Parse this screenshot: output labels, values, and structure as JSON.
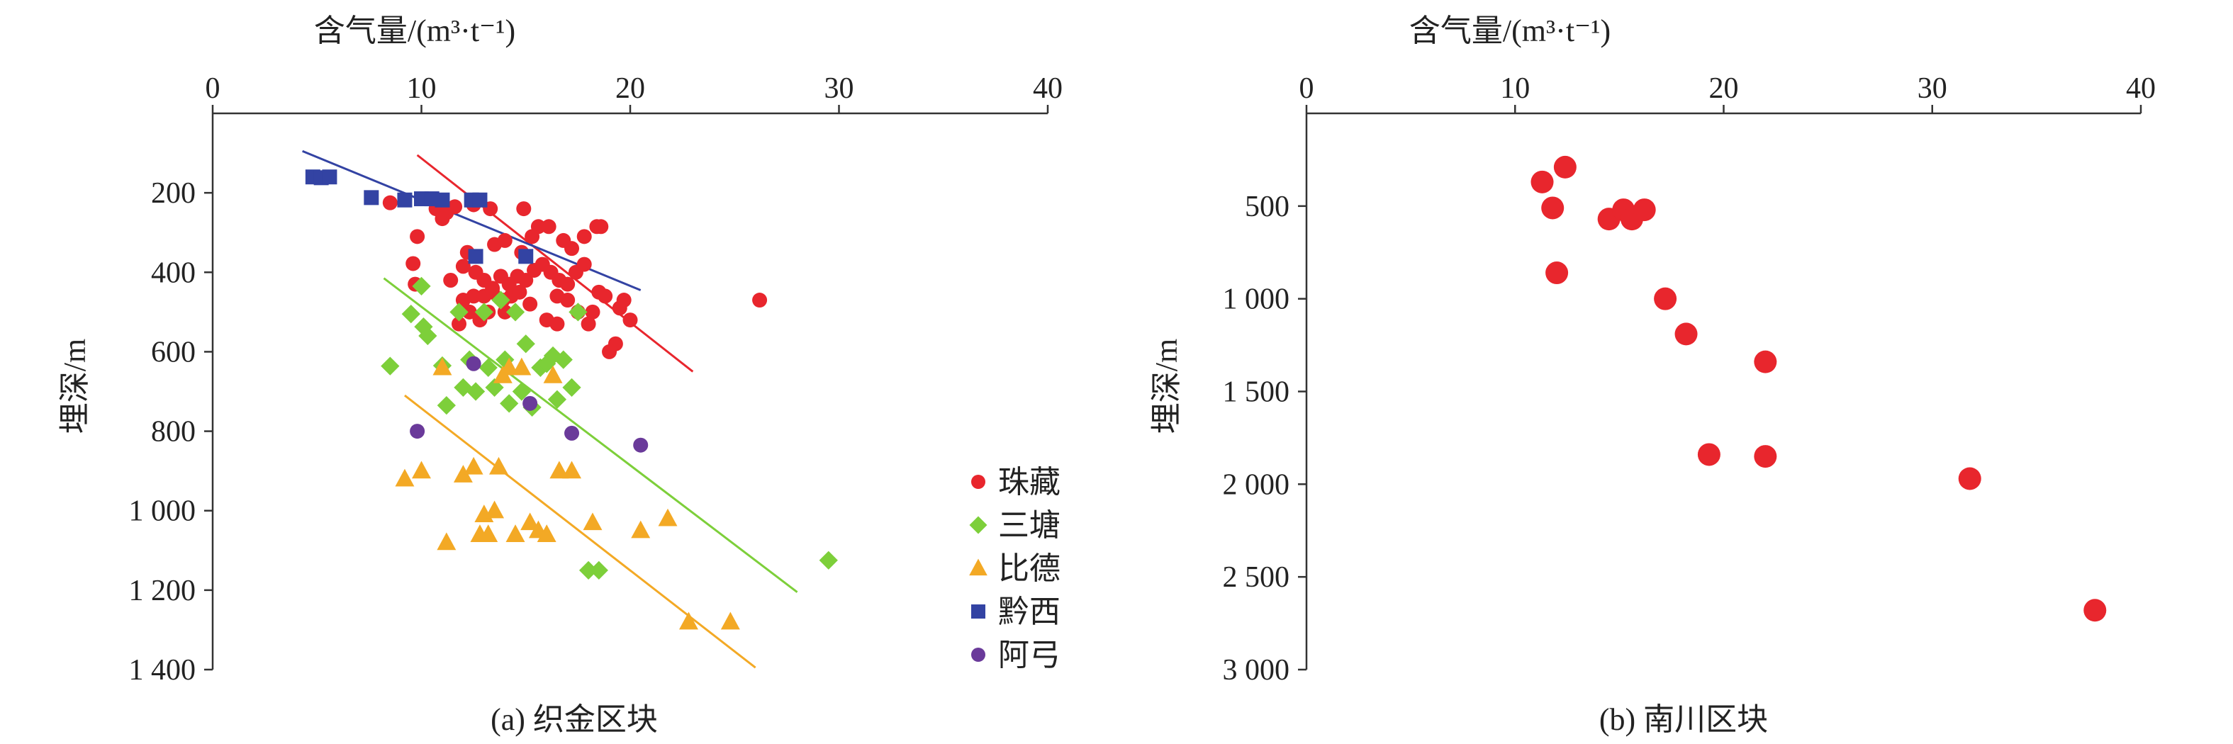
{
  "chart_data": [
    {
      "type": "scatter",
      "panel_label": "(a) 织金区块",
      "xlabel": "含气量/(m³·t⁻¹)",
      "ylabel": "埋深/m",
      "xlim": [
        0,
        40
      ],
      "ylim": [
        0,
        1400
      ],
      "x_ticks": [
        "0",
        "10",
        "20",
        "30",
        "40"
      ],
      "y_ticks": [
        "200",
        "400",
        "600",
        "800",
        "1 000",
        "1 200",
        "1 400"
      ],
      "y_tick_values": [
        200,
        400,
        600,
        800,
        1000,
        1200,
        1400
      ],
      "x_axis_position": "top",
      "y_axis_inverted": true,
      "grid": false,
      "legend_position": "right",
      "series": [
        {
          "name": "珠藏",
          "color": "#e8262d",
          "marker": "circle",
          "points": [
            [
              8.5,
              225
            ],
            [
              10.7,
              240
            ],
            [
              11.2,
              250
            ],
            [
              11.6,
              235
            ],
            [
              12.5,
              230
            ],
            [
              13.3,
              240
            ],
            [
              14.9,
              240
            ],
            [
              15.6,
              285
            ],
            [
              16.1,
              285
            ],
            [
              18.4,
              285
            ],
            [
              18.6,
              285
            ],
            [
              11.0,
              265
            ],
            [
              9.8,
              310
            ],
            [
              9.6,
              378
            ],
            [
              9.7,
              430
            ],
            [
              12.2,
              350
            ],
            [
              13.5,
              330
            ],
            [
              14.0,
              320
            ],
            [
              14.8,
              350
            ],
            [
              15.3,
              310
            ],
            [
              16.8,
              320
            ],
            [
              17.2,
              340
            ],
            [
              17.8,
              310
            ],
            [
              11.4,
              420
            ],
            [
              12.0,
              385
            ],
            [
              12.6,
              400
            ],
            [
              13.0,
              420
            ],
            [
              13.4,
              440
            ],
            [
              13.8,
              410
            ],
            [
              14.2,
              430
            ],
            [
              14.6,
              410
            ],
            [
              15.0,
              420
            ],
            [
              15.4,
              395
            ],
            [
              15.8,
              380
            ],
            [
              16.2,
              400
            ],
            [
              16.6,
              420
            ],
            [
              17.0,
              430
            ],
            [
              17.4,
              400
            ],
            [
              17.8,
              380
            ],
            [
              12.0,
              470
            ],
            [
              12.5,
              460
            ],
            [
              13.0,
              460
            ],
            [
              13.4,
              450
            ],
            [
              13.9,
              470
            ],
            [
              14.3,
              460
            ],
            [
              14.7,
              450
            ],
            [
              15.2,
              480
            ],
            [
              11.8,
              530
            ],
            [
              12.3,
              500
            ],
            [
              12.8,
              520
            ],
            [
              13.2,
              500
            ],
            [
              14.0,
              500
            ],
            [
              16.0,
              520
            ],
            [
              16.5,
              530
            ],
            [
              17.5,
              500
            ],
            [
              18.2,
              500
            ],
            [
              18.8,
              460
            ],
            [
              19.5,
              490
            ],
            [
              19.7,
              470
            ],
            [
              20.0,
              520
            ],
            [
              19.3,
              580
            ],
            [
              19.0,
              600
            ],
            [
              18.5,
              450
            ],
            [
              17.0,
              470
            ],
            [
              16.5,
              460
            ],
            [
              18.0,
              530
            ],
            [
              26.2,
              470
            ]
          ]
        },
        {
          "name": "三塘",
          "color": "#7dcf3a",
          "marker": "diamond",
          "points": [
            [
              8.5,
              636
            ],
            [
              9.5,
              505
            ],
            [
              10.0,
              435
            ],
            [
              10.1,
              537
            ],
            [
              10.3,
              560
            ],
            [
              11.0,
              635
            ],
            [
              11.2,
              735
            ],
            [
              11.8,
              500
            ],
            [
              12.0,
              690
            ],
            [
              12.3,
              620
            ],
            [
              12.6,
              700
            ],
            [
              13.0,
              500
            ],
            [
              13.2,
              640
            ],
            [
              13.5,
              690
            ],
            [
              13.8,
              470
            ],
            [
              14.0,
              620
            ],
            [
              14.2,
              730
            ],
            [
              14.5,
              500
            ],
            [
              14.8,
              700
            ],
            [
              15.0,
              580
            ],
            [
              15.3,
              740
            ],
            [
              15.7,
              640
            ],
            [
              16.0,
              630
            ],
            [
              16.3,
              610
            ],
            [
              16.5,
              720
            ],
            [
              16.8,
              620
            ],
            [
              17.2,
              690
            ],
            [
              17.5,
              500
            ],
            [
              18.0,
              1150
            ],
            [
              18.5,
              1150
            ],
            [
              29.5,
              1125
            ]
          ]
        },
        {
          "name": "比德",
          "color": "#f3a925",
          "marker": "triangle",
          "points": [
            [
              9.2,
              920
            ],
            [
              10.0,
              900
            ],
            [
              11.0,
              640
            ],
            [
              11.2,
              1080
            ],
            [
              12.0,
              910
            ],
            [
              12.5,
              890
            ],
            [
              12.8,
              1060
            ],
            [
              13.0,
              1010
            ],
            [
              13.2,
              1060
            ],
            [
              13.5,
              1000
            ],
            [
              13.7,
              890
            ],
            [
              13.9,
              660
            ],
            [
              14.2,
              640
            ],
            [
              14.5,
              1060
            ],
            [
              14.8,
              640
            ],
            [
              15.2,
              1030
            ],
            [
              15.6,
              1050
            ],
            [
              16.0,
              1060
            ],
            [
              16.3,
              660
            ],
            [
              16.6,
              900
            ],
            [
              17.2,
              900
            ],
            [
              18.2,
              1030
            ],
            [
              20.5,
              1050
            ],
            [
              21.8,
              1020
            ],
            [
              22.8,
              1280
            ],
            [
              24.8,
              1280
            ]
          ]
        },
        {
          "name": "黔西",
          "color": "#3343a3",
          "marker": "square",
          "points": [
            [
              4.8,
              160
            ],
            [
              5.2,
              162
            ],
            [
              5.6,
              160
            ],
            [
              7.6,
              212
            ],
            [
              9.2,
              218
            ],
            [
              10.0,
              215
            ],
            [
              10.5,
              215
            ],
            [
              11.0,
              218
            ],
            [
              12.4,
              218
            ],
            [
              12.8,
              218
            ],
            [
              12.6,
              360
            ],
            [
              15.0,
              360
            ]
          ]
        },
        {
          "name": "阿弓",
          "color": "#6a3a9a",
          "marker": "circle",
          "points": [
            [
              9.8,
              800
            ],
            [
              12.5,
              630
            ],
            [
              15.2,
              730
            ],
            [
              17.2,
              805
            ],
            [
              20.5,
              835
            ]
          ]
        }
      ],
      "trend_lines": [
        {
          "series": "珠藏",
          "x": [
            9.8,
            23.0
          ],
          "y": [
            105,
            650
          ]
        },
        {
          "series": "三塘",
          "x": [
            8.2,
            28.0
          ],
          "y": [
            415,
            1205
          ]
        },
        {
          "series": "比德",
          "x": [
            9.2,
            26.0
          ],
          "y": [
            710,
            1395
          ]
        },
        {
          "series": "黔西",
          "x": [
            4.3,
            20.5
          ],
          "y": [
            95,
            445
          ]
        }
      ]
    },
    {
      "type": "scatter",
      "panel_label": "(b) 南川区块",
      "xlabel": "含气量/(m³·t⁻¹)",
      "ylabel": "埋深/m",
      "xlim": [
        0,
        40
      ],
      "ylim": [
        0,
        3000
      ],
      "x_ticks": [
        "0",
        "10",
        "20",
        "30",
        "40"
      ],
      "y_ticks": [
        "500",
        "1 000",
        "1 500",
        "2 000",
        "2 500",
        "3 000"
      ],
      "y_tick_values": [
        500,
        1000,
        1500,
        2000,
        2500,
        3000
      ],
      "x_axis_position": "top",
      "y_axis_inverted": true,
      "grid": false,
      "series": [
        {
          "name": "",
          "color": "#e8262d",
          "marker": "circle",
          "points": [
            [
              11.3,
              370
            ],
            [
              12.4,
              290
            ],
            [
              11.8,
              510
            ],
            [
              14.5,
              570
            ],
            [
              15.2,
              520
            ],
            [
              15.6,
              570
            ],
            [
              16.2,
              520
            ],
            [
              12.0,
              860
            ],
            [
              17.2,
              1000
            ],
            [
              18.2,
              1190
            ],
            [
              22.0,
              1340
            ],
            [
              19.3,
              1840
            ],
            [
              22.0,
              1850
            ],
            [
              31.8,
              1970
            ],
            [
              37.8,
              2680
            ]
          ]
        }
      ]
    }
  ]
}
